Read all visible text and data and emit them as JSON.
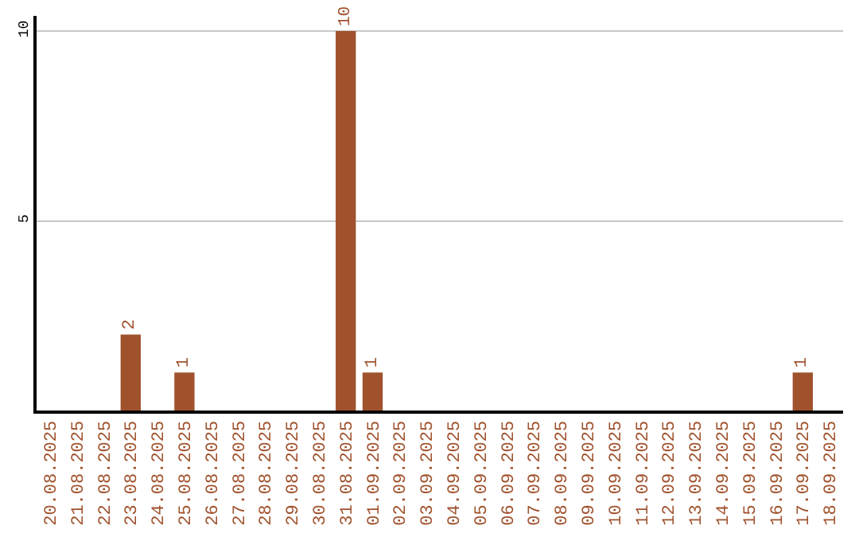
{
  "chart_data": {
    "type": "bar",
    "categories": [
      "20.08.2025",
      "21.08.2025",
      "22.08.2025",
      "23.08.2025",
      "24.08.2025",
      "25.08.2025",
      "26.08.2025",
      "27.08.2025",
      "28.08.2025",
      "29.08.2025",
      "30.08.2025",
      "31.08.2025",
      "01.09.2025",
      "02.09.2025",
      "03.09.2025",
      "04.09.2025",
      "05.09.2025",
      "06.09.2025",
      "07.09.2025",
      "08.09.2025",
      "09.09.2025",
      "10.09.2025",
      "11.09.2025",
      "12.09.2025",
      "13.09.2025",
      "14.09.2025",
      "15.09.2025",
      "16.09.2025",
      "17.09.2025",
      "18.09.2025"
    ],
    "values": [
      0,
      0,
      0,
      2,
      0,
      1,
      0,
      0,
      0,
      0,
      0,
      10,
      1,
      0,
      0,
      0,
      0,
      0,
      0,
      0,
      0,
      0,
      0,
      0,
      0,
      0,
      0,
      0,
      1,
      0
    ],
    "value_labels": [
      null,
      null,
      null,
      "2",
      null,
      "1",
      null,
      null,
      null,
      null,
      null,
      "10",
      "1",
      null,
      null,
      null,
      null,
      null,
      null,
      null,
      null,
      null,
      null,
      null,
      null,
      null,
      null,
      null,
      "1",
      null
    ],
    "color": "#a0522d",
    "ylim": [
      0,
      10.4
    ],
    "yticks": [
      5,
      10
    ],
    "grid": "y",
    "legend": false
  }
}
